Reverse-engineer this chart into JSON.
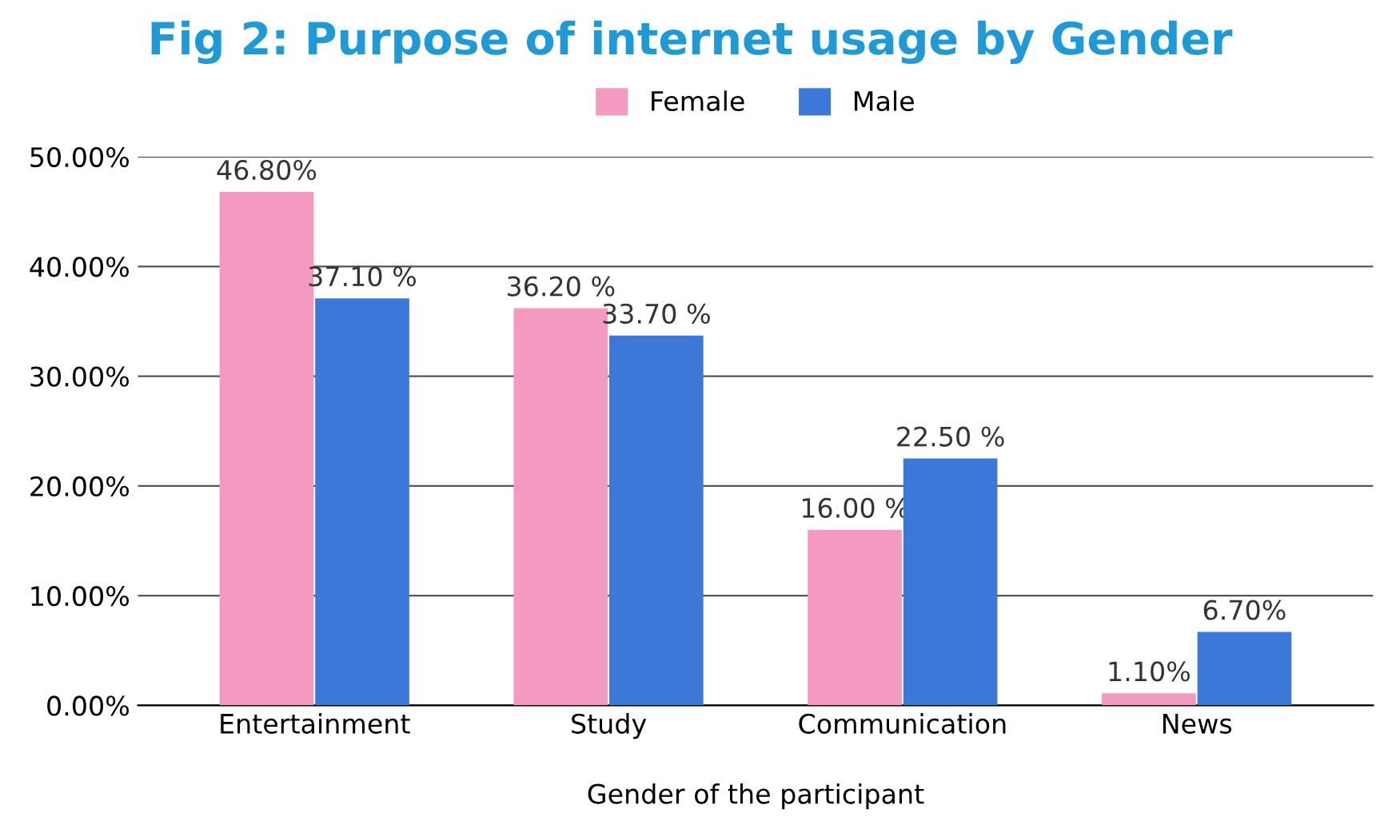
{
  "chart_data": {
    "type": "bar",
    "title": "Fig 2: Purpose of internet usage by Gender",
    "xlabel": "Gender of the participant",
    "categories": [
      "Entertainment",
      "Study",
      "Communication",
      "News"
    ],
    "series": [
      {
        "name": "Female",
        "color": "#f49ac1",
        "values": [
          46.8,
          36.2,
          16.0,
          1.1
        ],
        "value_labels": [
          "46.80%",
          "36.20 %",
          "16.00 %",
          "1.10%"
        ]
      },
      {
        "name": "Male",
        "color": "#3c78d8",
        "values": [
          37.1,
          33.7,
          22.5,
          6.7
        ],
        "value_labels": [
          "37.10 %",
          "33.70 %",
          "22.50 %",
          "6.70%"
        ]
      }
    ],
    "ylim": [
      0,
      50
    ],
    "yticks": [
      {
        "value": 0,
        "label": "0.00%"
      },
      {
        "value": 10,
        "label": "10.00%"
      },
      {
        "value": 20,
        "label": "20.00%"
      },
      {
        "value": 30,
        "label": "30.00%"
      },
      {
        "value": 40,
        "label": "40.00%"
      },
      {
        "value": 50,
        "label": "50.00%"
      }
    ],
    "grid": "y",
    "legend": "top"
  }
}
